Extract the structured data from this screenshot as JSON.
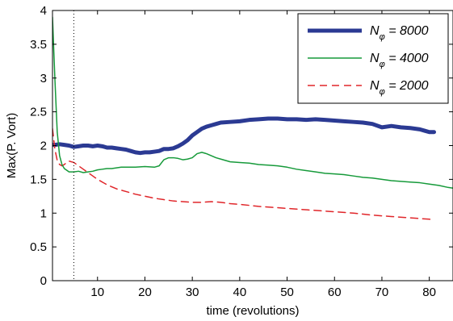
{
  "chart_data": {
    "type": "line",
    "title": "",
    "xlabel": "time (revolutions)",
    "ylabel": "Max(P. Vort)",
    "xlim": [
      0.5,
      85
    ],
    "ylim": [
      0,
      4
    ],
    "x_ticks": [
      10,
      20,
      30,
      40,
      50,
      60,
      70,
      80
    ],
    "y_ticks": [
      0,
      0.5,
      1,
      1.5,
      2,
      2.5,
      3,
      3.5,
      4
    ],
    "x_tick_labels": [
      "10",
      "20",
      "30",
      "40",
      "50",
      "60",
      "70",
      "80"
    ],
    "y_tick_labels": [
      "0",
      "0.5",
      "1",
      "1.5",
      "2",
      "2.5",
      "3",
      "3.5",
      "4"
    ],
    "grid": false,
    "legend_position": "top-right",
    "reference_line": {
      "x": 5,
      "style": "dotted"
    },
    "series": [
      {
        "name": "N_φ = 8000",
        "legend_main": "N",
        "legend_sub": "φ",
        "legend_rest": " = 8000",
        "color": "#2b3a93",
        "dash": "solid",
        "width": "thick",
        "x": [
          0.5,
          1,
          2,
          3,
          4,
          5,
          6,
          7,
          8,
          9,
          10,
          11,
          12,
          13,
          14,
          15,
          16,
          17,
          18,
          19,
          20,
          21,
          22,
          23,
          24,
          25,
          26,
          27,
          28,
          29,
          30,
          31,
          32,
          33,
          34,
          35,
          36,
          38,
          40,
          42,
          44,
          46,
          48,
          50,
          52,
          54,
          56,
          58,
          60,
          62,
          64,
          66,
          68,
          70,
          72,
          74,
          76,
          78,
          79,
          80,
          81
        ],
        "y": [
          2.01,
          2.01,
          2.02,
          2.01,
          2.0,
          1.98,
          1.99,
          2.0,
          2.0,
          1.99,
          2.0,
          1.99,
          1.97,
          1.97,
          1.96,
          1.95,
          1.94,
          1.92,
          1.9,
          1.89,
          1.9,
          1.9,
          1.91,
          1.92,
          1.95,
          1.95,
          1.96,
          1.99,
          2.03,
          2.08,
          2.15,
          2.2,
          2.25,
          2.28,
          2.3,
          2.32,
          2.34,
          2.35,
          2.36,
          2.38,
          2.39,
          2.4,
          2.4,
          2.39,
          2.39,
          2.38,
          2.39,
          2.38,
          2.37,
          2.36,
          2.35,
          2.34,
          2.32,
          2.27,
          2.29,
          2.27,
          2.26,
          2.24,
          2.22,
          2.2,
          2.2
        ]
      },
      {
        "name": "N_φ = 4000",
        "legend_main": "N",
        "legend_sub": "φ",
        "legend_rest": " = 4000",
        "color": "#169a3a",
        "dash": "solid",
        "width": "thin",
        "x": [
          0.5,
          1,
          1.5,
          2,
          2.5,
          3,
          4,
          5,
          6,
          7,
          8,
          9,
          10,
          11,
          12,
          13,
          14,
          15,
          16,
          18,
          20,
          22,
          23,
          24,
          25,
          26,
          27,
          28,
          29,
          30,
          31,
          32,
          33,
          34,
          35,
          36,
          38,
          40,
          42,
          44,
          46,
          48,
          50,
          52,
          54,
          56,
          58,
          60,
          62,
          64,
          66,
          68,
          70,
          72,
          74,
          76,
          78,
          80,
          82,
          84,
          85
        ],
        "y": [
          3.9,
          3.0,
          2.2,
          1.85,
          1.72,
          1.66,
          1.61,
          1.61,
          1.62,
          1.6,
          1.61,
          1.62,
          1.64,
          1.65,
          1.66,
          1.66,
          1.67,
          1.68,
          1.68,
          1.68,
          1.69,
          1.68,
          1.7,
          1.79,
          1.82,
          1.82,
          1.81,
          1.79,
          1.8,
          1.82,
          1.88,
          1.9,
          1.88,
          1.85,
          1.82,
          1.8,
          1.76,
          1.75,
          1.74,
          1.72,
          1.71,
          1.7,
          1.68,
          1.65,
          1.63,
          1.61,
          1.59,
          1.58,
          1.57,
          1.55,
          1.53,
          1.52,
          1.5,
          1.48,
          1.47,
          1.46,
          1.45,
          1.43,
          1.41,
          1.38,
          1.37
        ]
      },
      {
        "name": "N_φ = 2000",
        "legend_main": "N",
        "legend_sub": "φ",
        "legend_rest": " = 2000",
        "color": "#e0262a",
        "dash": "dashed",
        "width": "thin",
        "x": [
          0.5,
          1,
          1.5,
          2,
          2.5,
          3,
          3.5,
          4,
          5,
          6,
          7,
          8,
          9,
          10,
          12,
          14,
          16,
          18,
          20,
          22,
          24,
          26,
          28,
          30,
          32,
          34,
          36,
          38,
          40,
          44,
          48,
          52,
          56,
          60,
          64,
          68,
          72,
          76,
          80,
          81
        ],
        "y": [
          2.25,
          1.95,
          1.78,
          1.72,
          1.7,
          1.72,
          1.75,
          1.77,
          1.75,
          1.7,
          1.65,
          1.6,
          1.55,
          1.5,
          1.42,
          1.36,
          1.32,
          1.28,
          1.25,
          1.22,
          1.2,
          1.18,
          1.17,
          1.16,
          1.16,
          1.17,
          1.16,
          1.14,
          1.13,
          1.1,
          1.08,
          1.06,
          1.04,
          1.02,
          1.0,
          0.97,
          0.95,
          0.93,
          0.91,
          0.9
        ]
      }
    ]
  }
}
